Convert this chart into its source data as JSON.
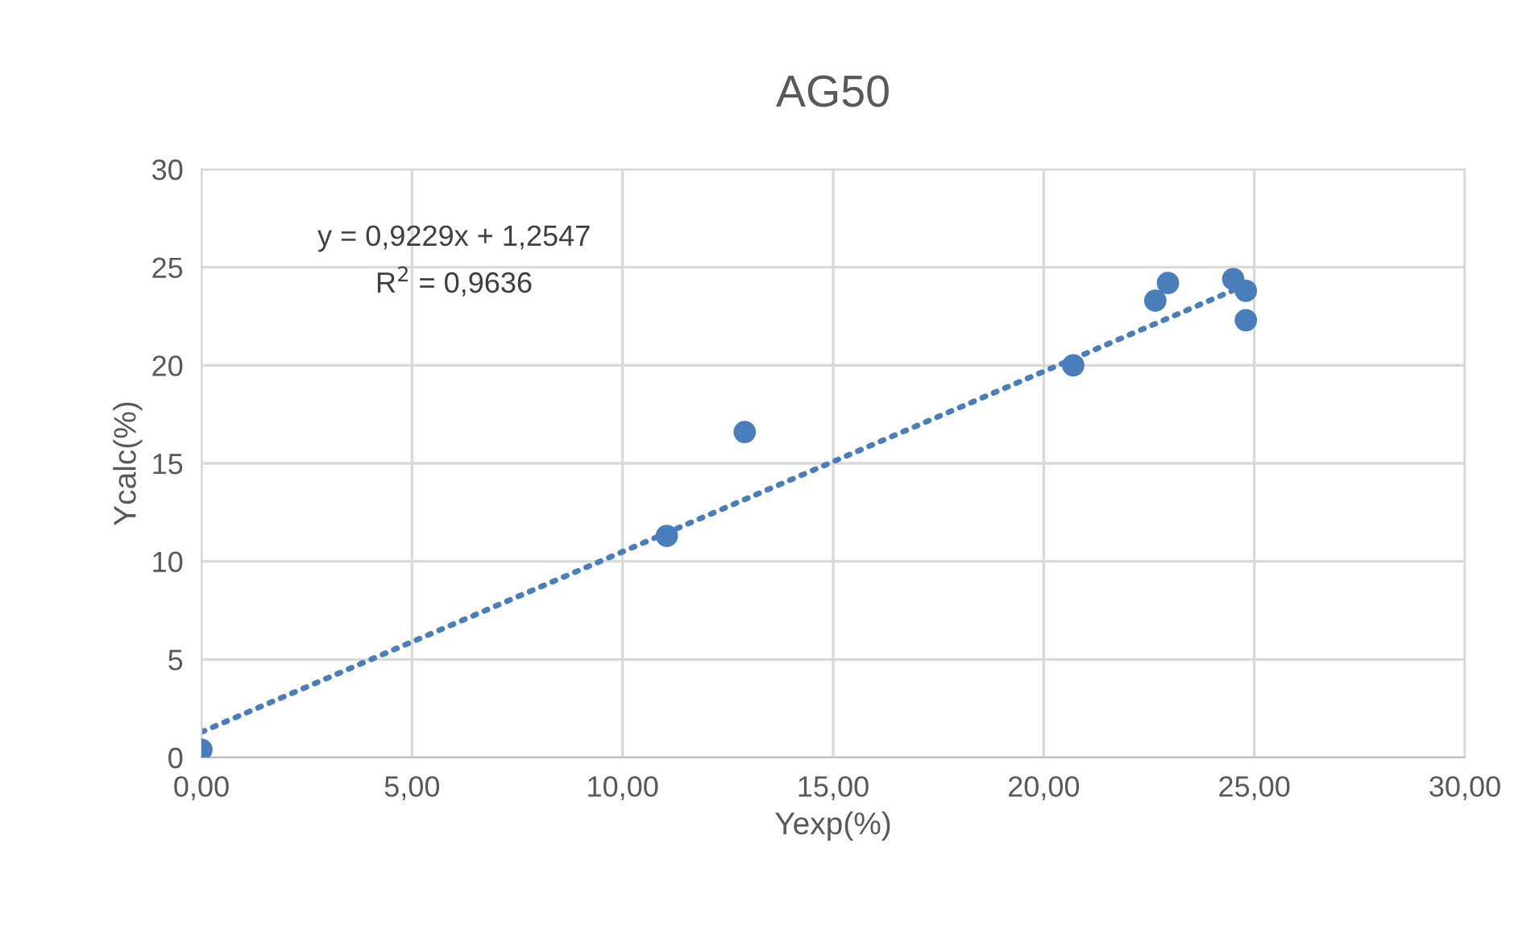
{
  "chart_data": {
    "type": "scatter",
    "title": "AG50",
    "xlabel": "Yexp(%)",
    "ylabel": "Ycalc(%)",
    "xlim": [
      0,
      30
    ],
    "ylim": [
      0,
      30
    ],
    "xticks": [
      {
        "value": 0,
        "label": "0,00"
      },
      {
        "value": 5,
        "label": "5,00"
      },
      {
        "value": 10,
        "label": "10,00"
      },
      {
        "value": 15,
        "label": "15,00"
      },
      {
        "value": 20,
        "label": "20,00"
      },
      {
        "value": 25,
        "label": "25,00"
      },
      {
        "value": 30,
        "label": "30,00"
      }
    ],
    "yticks": [
      0,
      5,
      10,
      15,
      20,
      25,
      30
    ],
    "grid": true,
    "series": [
      {
        "marker": "circle",
        "color": "#4a7ebb",
        "x": [
          0,
          11.05,
          12.9,
          20.7,
          22.65,
          22.95,
          24.5,
          24.8,
          24.8
        ],
        "values": [
          0.4,
          11.3,
          16.6,
          20.0,
          23.3,
          24.2,
          24.4,
          23.8,
          22.3
        ]
      },
      {
        "type": "line",
        "color": "#4a7ebb",
        "line_style": "dotted",
        "x": [
          0,
          24.8
        ],
        "values": [
          1.3,
          24.1
        ]
      }
    ],
    "annotations": [
      "y = 0,9229x + 1,2547",
      "R$^{2}$ = 0,9636"
    ]
  }
}
